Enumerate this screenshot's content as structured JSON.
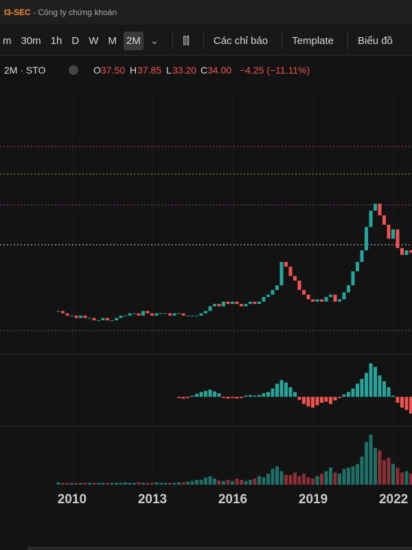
{
  "header": {
    "brand": "I3-SEC",
    "subtitle": "- Công ty chứng khoán"
  },
  "toolbar": {
    "intervals": [
      "m",
      "30m",
      "1h",
      "D",
      "W",
      "M",
      "2M"
    ],
    "selected": 6,
    "indicators": "Các chỉ báo",
    "template": "Template",
    "chart": "Biểu đồ"
  },
  "legend": {
    "symbol": "2M · STO",
    "o_label": "O",
    "open": "37.50",
    "h_label": "H",
    "high": "37.85",
    "l_label": "L",
    "low": "33.20",
    "c_label": "C",
    "close": "34.00",
    "change": "−4.25 (−11.11%)"
  },
  "chart_data": {
    "type": "candlestick",
    "xlim": [
      2007.31,
      2022.69
    ],
    "xticks": [
      2010,
      2013,
      2016,
      2019,
      2022
    ],
    "ylim": [
      -8,
      104
    ],
    "levels": [
      {
        "value": 79.5,
        "color": "#c0405a"
      },
      {
        "value": 67.7,
        "color": "#c8b030"
      },
      {
        "value": 54.5,
        "color": "#9a40a0"
      },
      {
        "value": 37.4,
        "color": "#dddddd"
      },
      {
        "value": 0.6,
        "color": "#666666"
      }
    ],
    "closes": [
      9,
      8,
      7,
      7,
      6,
      7,
      6,
      6,
      5,
      5,
      6,
      5,
      5,
      6,
      7,
      7,
      8,
      8,
      7,
      9,
      8,
      7,
      8,
      8,
      8,
      7,
      8,
      8,
      7,
      7,
      7,
      7,
      8,
      9,
      11,
      12,
      11,
      13,
      12,
      13,
      12,
      11,
      12,
      13,
      12,
      13,
      15,
      16,
      18,
      20,
      30,
      28,
      24,
      22,
      18,
      16,
      14,
      13,
      14,
      13,
      15,
      16,
      13,
      14,
      17,
      20,
      26,
      30,
      35,
      45,
      52,
      55,
      50,
      46,
      40,
      44,
      36,
      33,
      35,
      34
    ],
    "up_color": "#26a69a",
    "down_color": "#ef5350",
    "macd": {
      "ylim": [
        -40,
        60
      ],
      "values": [
        null,
        null,
        null,
        null,
        null,
        null,
        null,
        null,
        null,
        null,
        null,
        null,
        null,
        null,
        null,
        null,
        null,
        null,
        null,
        null,
        null,
        null,
        null,
        null,
        null,
        null,
        null,
        -2,
        -3,
        -2,
        2,
        5,
        8,
        10,
        12,
        9,
        6,
        -2,
        -3,
        -2,
        -3,
        -2,
        2,
        3,
        2,
        3,
        6,
        8,
        14,
        22,
        28,
        24,
        16,
        8,
        -5,
        -12,
        -16,
        -18,
        -14,
        -10,
        -8,
        -12,
        -6,
        -2,
        4,
        8,
        14,
        22,
        30,
        40,
        56,
        50,
        36,
        26,
        16,
        2,
        -10,
        -18,
        -22,
        -28
      ]
    },
    "volume": {
      "ylim": [
        0,
        90
      ],
      "values": [
        4,
        3,
        3,
        3,
        3,
        3,
        3,
        3,
        3,
        3,
        3,
        3,
        3,
        3,
        3,
        4,
        3,
        3,
        4,
        3,
        3,
        3,
        4,
        3,
        3,
        3,
        3,
        4,
        4,
        5,
        6,
        8,
        8,
        12,
        14,
        10,
        7,
        6,
        8,
        6,
        10,
        8,
        6,
        8,
        10,
        14,
        12,
        18,
        26,
        30,
        22,
        16,
        16,
        20,
        14,
        18,
        12,
        10,
        14,
        18,
        22,
        28,
        20,
        18,
        26,
        28,
        30,
        34,
        46,
        70,
        82,
        60,
        56,
        40,
        44,
        34,
        28,
        20,
        22,
        18
      ]
    }
  }
}
